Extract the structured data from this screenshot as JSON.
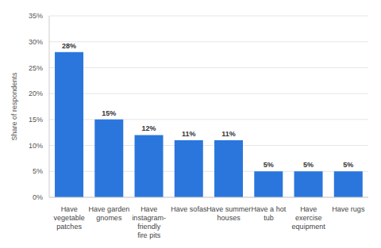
{
  "chart_data": {
    "type": "bar",
    "y_label": "Share of respondents",
    "categories": [
      "Have vegetable patches",
      "Have garden gnomes",
      "Have instagram-friendly fire pits",
      "Have sofas",
      "Have summer houses",
      "Have a hot tub",
      "Have exercise equipment",
      "Have rugs"
    ],
    "values": [
      28,
      15,
      12,
      11,
      11,
      5,
      5,
      5
    ],
    "value_labels": [
      "28%",
      "15%",
      "12%",
      "11%",
      "11%",
      "5%",
      "5%",
      "5%"
    ],
    "color": "#2a76dd",
    "ylim": [
      0,
      35
    ],
    "yticks": [
      {
        "value": 0,
        "label": "0%"
      },
      {
        "value": 5,
        "label": "5%"
      },
      {
        "value": 10,
        "label": "10%"
      },
      {
        "value": 15,
        "label": "15%"
      },
      {
        "value": 20,
        "label": "20%"
      },
      {
        "value": 25,
        "label": "25%"
      },
      {
        "value": 30,
        "label": "30%"
      },
      {
        "value": 35,
        "label": "35%"
      }
    ],
    "grid": true,
    "data_labels": true
  }
}
